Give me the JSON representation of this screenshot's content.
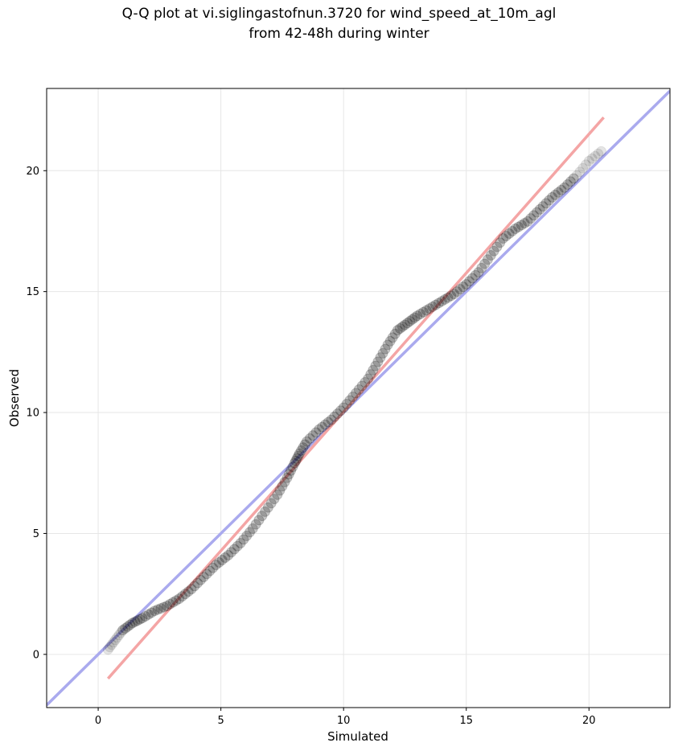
{
  "chart_data": {
    "type": "scatter",
    "title_lines": [
      "Q-Q plot at vi.siglingastofnun.3720 for wind_speed_at_10m_agl",
      "from 42-48h during winter"
    ],
    "xlabel": "Simulated",
    "ylabel": "Observed",
    "xlim": [
      -2.1,
      23.3
    ],
    "ylim": [
      -2.2,
      23.4
    ],
    "xticks": [
      0,
      5,
      10,
      15,
      20
    ],
    "yticks": [
      0,
      5,
      10,
      15,
      20
    ],
    "xtick_labels": [
      "0",
      "5",
      "10",
      "15",
      "20"
    ],
    "ytick_labels": [
      "0",
      "5",
      "10",
      "15",
      "20"
    ],
    "grid": true,
    "quantile_points": {
      "x": [
        0.4,
        0.7,
        1.0,
        1.4,
        1.8,
        2.3,
        2.8,
        3.3,
        3.8,
        4.3,
        4.8,
        5.3,
        5.8,
        6.3,
        6.8,
        7.3,
        7.7,
        8.0,
        8.2,
        8.5,
        9.0,
        9.5,
        10.0,
        10.5,
        11.0,
        11.4,
        11.8,
        12.2,
        12.6,
        13.0,
        13.5,
        14.0,
        14.5,
        15.0,
        15.5,
        16.0,
        16.5,
        17.0,
        17.5,
        18.0,
        18.5,
        19.0,
        19.5,
        20.0,
        20.5
      ],
      "y": [
        0.2,
        0.6,
        1.0,
        1.3,
        1.5,
        1.8,
        2.0,
        2.3,
        2.7,
        3.2,
        3.7,
        4.1,
        4.6,
        5.2,
        5.9,
        6.6,
        7.3,
        7.9,
        8.3,
        8.8,
        9.3,
        9.7,
        10.2,
        10.8,
        11.4,
        12.1,
        12.8,
        13.4,
        13.7,
        14.0,
        14.3,
        14.6,
        14.9,
        15.3,
        15.8,
        16.5,
        17.2,
        17.6,
        17.9,
        18.4,
        18.9,
        19.3,
        19.8,
        20.4,
        20.8
      ],
      "color": "#000000"
    },
    "reference_lines": [
      {
        "label": "identity",
        "x": [
          -2.1,
          23.3
        ],
        "y": [
          -2.1,
          23.3
        ],
        "color": "#aaaaee"
      },
      {
        "label": "fit",
        "x": [
          0.4,
          20.6
        ],
        "y": [
          -1.0,
          22.2
        ],
        "color": "#f4a5a5"
      }
    ]
  }
}
